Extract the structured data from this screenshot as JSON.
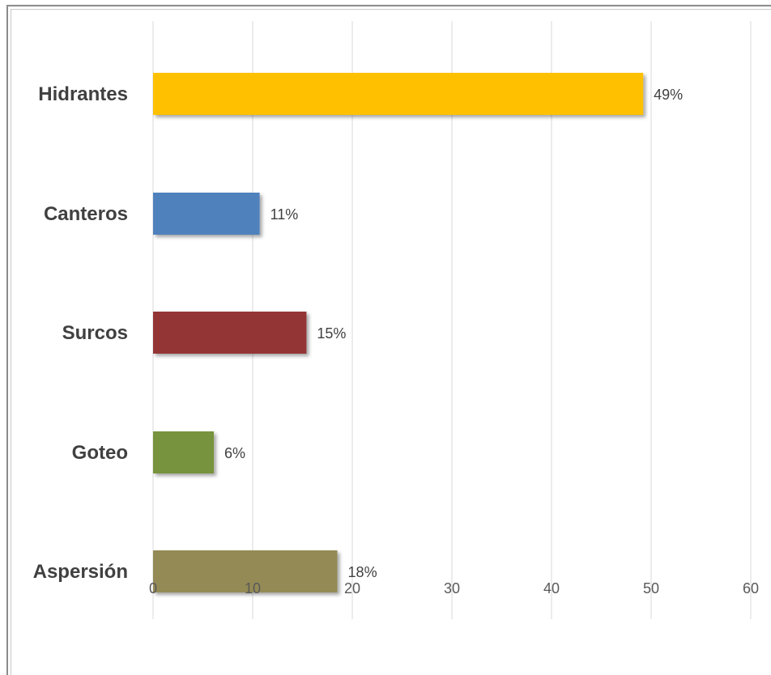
{
  "chart_data": {
    "type": "bar",
    "orientation": "horizontal",
    "title": "",
    "xlabel": "",
    "ylabel": "",
    "categories": [
      "Hidrantes",
      "Canteros",
      "Surcos",
      "Goteo",
      "Aspersión"
    ],
    "values": [
      49.2,
      10.7,
      15.4,
      6.1,
      18.5
    ],
    "data_labels": [
      "49%",
      "11%",
      "15%",
      "6%",
      "18%"
    ],
    "colors": [
      "#FFC000",
      "#4F81BD",
      "#943634",
      "#77933C",
      "#948A54"
    ],
    "xlim": [
      0,
      60
    ],
    "x_ticks": [
      0,
      10,
      20,
      30,
      40,
      50,
      60
    ],
    "x_tick_labels": [
      "0",
      "10",
      "20",
      "30",
      "40",
      "50",
      "60"
    ],
    "grid": "vertical",
    "legend": "none"
  }
}
